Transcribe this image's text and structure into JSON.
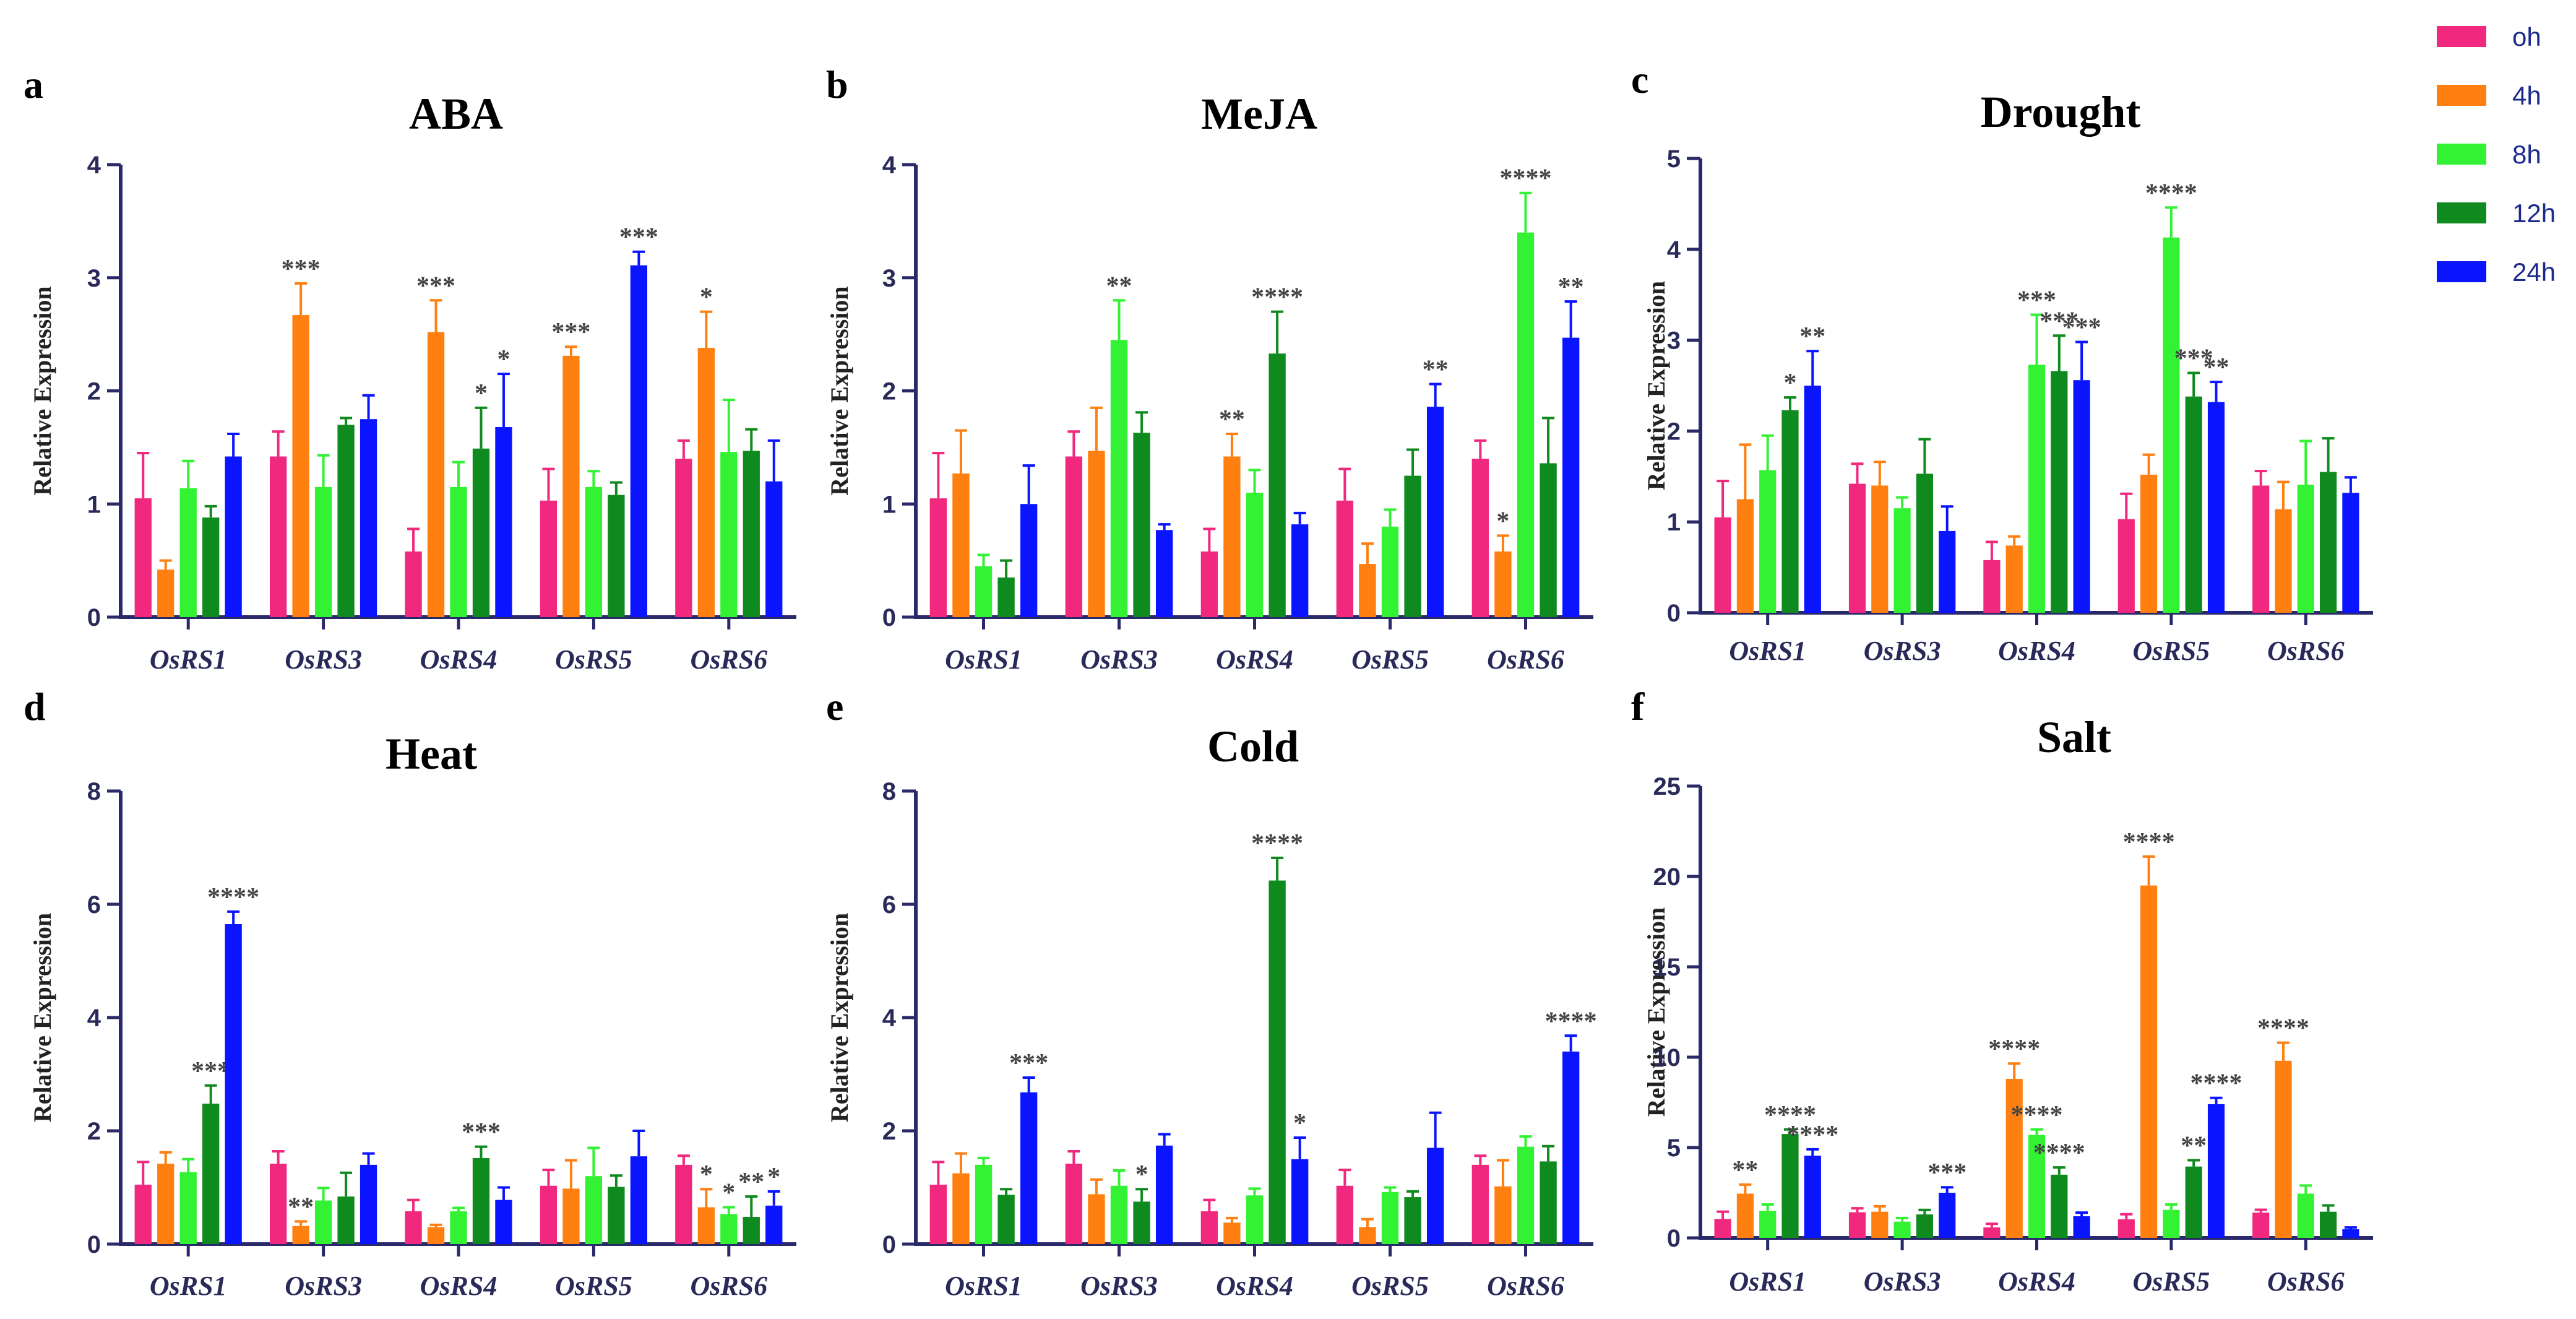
{
  "legend": [
    {
      "label": "oh",
      "color": "#f0287e"
    },
    {
      "label": "4h",
      "color": "#ff7f10"
    },
    {
      "label": "8h",
      "color": "#33f233"
    },
    {
      "label": "12h",
      "color": "#0f8a1e"
    },
    {
      "label": "24h",
      "color": "#0a14ff"
    }
  ],
  "chart_data": [
    {
      "letter": "a",
      "title": "ABA",
      "type": "bar",
      "ylabel": "Relative Expression",
      "ylim": [
        0,
        4
      ],
      "yticks": [
        0,
        1,
        2,
        3,
        4
      ],
      "categories": [
        "OsRS1",
        "OsRS3",
        "OsRS4",
        "OsRS5",
        "OsRS6"
      ],
      "series": [
        {
          "name": "oh",
          "values": [
            1.05,
            1.42,
            0.58,
            1.03,
            1.4
          ],
          "errors": [
            0.4,
            0.22,
            0.2,
            0.28,
            0.16
          ],
          "sig": [
            "",
            "",
            "",
            "",
            ""
          ]
        },
        {
          "name": "4h",
          "values": [
            0.42,
            2.67,
            2.52,
            2.31,
            2.38
          ],
          "errors": [
            0.08,
            0.28,
            0.28,
            0.08,
            0.32
          ],
          "sig": [
            "",
            "***",
            "***",
            "***",
            "*"
          ]
        },
        {
          "name": "8h",
          "values": [
            1.14,
            1.15,
            1.15,
            1.15,
            1.46
          ],
          "errors": [
            0.24,
            0.28,
            0.22,
            0.14,
            0.46
          ],
          "sig": [
            "",
            "",
            "",
            "",
            ""
          ]
        },
        {
          "name": "12h",
          "values": [
            0.88,
            1.7,
            1.49,
            1.08,
            1.47
          ],
          "errors": [
            0.1,
            0.06,
            0.36,
            0.11,
            0.19
          ],
          "sig": [
            "",
            "",
            "*",
            "",
            ""
          ]
        },
        {
          "name": "24h",
          "values": [
            1.42,
            1.75,
            1.68,
            3.11,
            1.2
          ],
          "errors": [
            0.2,
            0.21,
            0.47,
            0.12,
            0.36
          ],
          "sig": [
            "",
            "",
            "*",
            "***",
            ""
          ]
        }
      ]
    },
    {
      "letter": "b",
      "title": "MeJA",
      "type": "bar",
      "ylabel": "Relative Expression",
      "ylim": [
        0,
        4
      ],
      "yticks": [
        0,
        1,
        2,
        3,
        4
      ],
      "categories": [
        "OsRS1",
        "OsRS3",
        "OsRS4",
        "OsRS5",
        "OsRS6"
      ],
      "series": [
        {
          "name": "oh",
          "values": [
            1.05,
            1.42,
            0.58,
            1.03,
            1.4
          ],
          "errors": [
            0.4,
            0.22,
            0.2,
            0.28,
            0.16
          ],
          "sig": [
            "",
            "",
            "",
            "",
            ""
          ]
        },
        {
          "name": "4h",
          "values": [
            1.27,
            1.47,
            1.42,
            0.47,
            0.58
          ],
          "errors": [
            0.38,
            0.38,
            0.2,
            0.18,
            0.14
          ],
          "sig": [
            "",
            "",
            "**",
            "",
            "*"
          ]
        },
        {
          "name": "8h",
          "values": [
            0.45,
            2.45,
            1.1,
            0.8,
            3.4
          ],
          "errors": [
            0.1,
            0.35,
            0.2,
            0.15,
            0.35
          ],
          "sig": [
            "",
            "**",
            "",
            "",
            "****"
          ]
        },
        {
          "name": "12h",
          "values": [
            0.35,
            1.63,
            2.33,
            1.25,
            1.36
          ],
          "errors": [
            0.15,
            0.18,
            0.37,
            0.23,
            0.4
          ],
          "sig": [
            "",
            "",
            "****",
            "",
            ""
          ]
        },
        {
          "name": "24h",
          "values": [
            1.0,
            0.77,
            0.82,
            1.86,
            2.47
          ],
          "errors": [
            0.34,
            0.05,
            0.1,
            0.2,
            0.32
          ],
          "sig": [
            "",
            "",
            "",
            "**",
            "**"
          ]
        }
      ]
    },
    {
      "letter": "c",
      "title": "Drought",
      "type": "bar",
      "ylabel": "Relative Expression",
      "ylim": [
        0,
        5
      ],
      "yticks": [
        0,
        1,
        2,
        3,
        4,
        5
      ],
      "categories": [
        "OsRS1",
        "OsRS3",
        "OsRS4",
        "OsRS5",
        "OsRS6"
      ],
      "series": [
        {
          "name": "oh",
          "values": [
            1.05,
            1.42,
            0.58,
            1.03,
            1.4
          ],
          "errors": [
            0.4,
            0.22,
            0.2,
            0.28,
            0.16
          ],
          "sig": [
            "",
            "",
            "",
            "",
            ""
          ]
        },
        {
          "name": "4h",
          "values": [
            1.25,
            1.4,
            0.74,
            1.52,
            1.14
          ],
          "errors": [
            0.6,
            0.26,
            0.1,
            0.22,
            0.3
          ],
          "sig": [
            "",
            "",
            "",
            "",
            ""
          ]
        },
        {
          "name": "8h",
          "values": [
            1.57,
            1.15,
            2.73,
            4.13,
            1.41
          ],
          "errors": [
            0.38,
            0.12,
            0.55,
            0.33,
            0.48
          ],
          "sig": [
            "",
            "",
            "***",
            "****",
            ""
          ]
        },
        {
          "name": "12h",
          "values": [
            2.23,
            1.53,
            2.66,
            2.38,
            1.55
          ],
          "errors": [
            0.14,
            0.38,
            0.39,
            0.26,
            0.37
          ],
          "sig": [
            "*",
            "",
            "***",
            "***",
            ""
          ]
        },
        {
          "name": "24h",
          "values": [
            2.5,
            0.9,
            2.56,
            2.32,
            1.32
          ],
          "errors": [
            0.38,
            0.27,
            0.42,
            0.22,
            0.17
          ],
          "sig": [
            "**",
            "",
            "***",
            "**",
            ""
          ]
        }
      ]
    },
    {
      "letter": "d",
      "title": "Heat",
      "type": "bar",
      "ylabel": "Relative Expression",
      "ylim": [
        0,
        8
      ],
      "yticks": [
        0,
        2,
        4,
        6,
        8
      ],
      "categories": [
        "OsRS1",
        "OsRS3",
        "OsRS4",
        "OsRS5",
        "OsRS6"
      ],
      "series": [
        {
          "name": "oh",
          "values": [
            1.05,
            1.42,
            0.58,
            1.03,
            1.4
          ],
          "errors": [
            0.4,
            0.22,
            0.2,
            0.28,
            0.16
          ],
          "sig": [
            "",
            "",
            "",
            "",
            ""
          ]
        },
        {
          "name": "4h",
          "values": [
            1.42,
            0.32,
            0.3,
            0.98,
            0.65
          ],
          "errors": [
            0.2,
            0.08,
            0.04,
            0.5,
            0.32
          ],
          "sig": [
            "",
            "**",
            "",
            "",
            "*"
          ]
        },
        {
          "name": "8h",
          "values": [
            1.27,
            0.77,
            0.58,
            1.2,
            0.53
          ],
          "errors": [
            0.23,
            0.22,
            0.06,
            0.5,
            0.12
          ],
          "sig": [
            "",
            "",
            "",
            "",
            "*"
          ]
        },
        {
          "name": "12h",
          "values": [
            2.48,
            0.84,
            1.52,
            1.01,
            0.48
          ],
          "errors": [
            0.32,
            0.42,
            0.2,
            0.2,
            0.36
          ],
          "sig": [
            "***",
            "",
            "***",
            "",
            "**"
          ]
        },
        {
          "name": "24h",
          "values": [
            5.65,
            1.4,
            0.78,
            1.55,
            0.68
          ],
          "errors": [
            0.22,
            0.2,
            0.22,
            0.45,
            0.25
          ],
          "sig": [
            "****",
            "",
            "",
            "",
            "*"
          ]
        }
      ]
    },
    {
      "letter": "e",
      "title": "Cold",
      "type": "bar",
      "ylabel": "Relative Expression",
      "ylim": [
        0,
        8
      ],
      "yticks": [
        0,
        2,
        4,
        6,
        8
      ],
      "categories": [
        "OsRS1",
        "OsRS3",
        "OsRS4",
        "OsRS5",
        "OsRS6"
      ],
      "series": [
        {
          "name": "oh",
          "values": [
            1.05,
            1.42,
            0.58,
            1.03,
            1.4
          ],
          "errors": [
            0.4,
            0.22,
            0.2,
            0.28,
            0.16
          ],
          "sig": [
            "",
            "",
            "",
            "",
            ""
          ]
        },
        {
          "name": "4h",
          "values": [
            1.25,
            0.88,
            0.38,
            0.3,
            1.02
          ],
          "errors": [
            0.35,
            0.26,
            0.08,
            0.14,
            0.46
          ],
          "sig": [
            "",
            "",
            "",
            "",
            ""
          ]
        },
        {
          "name": "8h",
          "values": [
            1.4,
            1.03,
            0.86,
            0.92,
            1.72
          ],
          "errors": [
            0.12,
            0.27,
            0.12,
            0.08,
            0.18
          ],
          "sig": [
            "",
            "",
            "",
            "",
            ""
          ]
        },
        {
          "name": "12h",
          "values": [
            0.87,
            0.75,
            6.42,
            0.83,
            1.46
          ],
          "errors": [
            0.1,
            0.22,
            0.4,
            0.1,
            0.27
          ],
          "sig": [
            "",
            "*",
            "****",
            "",
            ""
          ]
        },
        {
          "name": "24h",
          "values": [
            2.68,
            1.74,
            1.5,
            1.7,
            3.4
          ],
          "errors": [
            0.26,
            0.2,
            0.38,
            0.62,
            0.28
          ],
          "sig": [
            "***",
            "",
            "*",
            "",
            "****"
          ]
        }
      ]
    },
    {
      "letter": "f",
      "title": "Salt",
      "type": "bar",
      "ylabel": "Relative Expression",
      "ylim": [
        0,
        25
      ],
      "yticks": [
        0,
        5,
        10,
        15,
        20,
        25
      ],
      "categories": [
        "OsRS1",
        "OsRS3",
        "OsRS4",
        "OsRS5",
        "OsRS6"
      ],
      "series": [
        {
          "name": "oh",
          "values": [
            1.05,
            1.42,
            0.58,
            1.03,
            1.4
          ],
          "errors": [
            0.4,
            0.22,
            0.2,
            0.28,
            0.16
          ],
          "sig": [
            "",
            "",
            "",
            "",
            ""
          ]
        },
        {
          "name": "4h",
          "values": [
            2.45,
            1.45,
            8.8,
            19.5,
            9.8
          ],
          "errors": [
            0.5,
            0.3,
            0.85,
            1.6,
            1.0
          ],
          "sig": [
            "**",
            "",
            "****",
            "****",
            "****"
          ]
        },
        {
          "name": "8h",
          "values": [
            1.5,
            0.9,
            5.7,
            1.55,
            2.45
          ],
          "errors": [
            0.35,
            0.2,
            0.3,
            0.3,
            0.45
          ],
          "sig": [
            "",
            "",
            "****",
            "",
            ""
          ]
        },
        {
          "name": "12h",
          "values": [
            5.75,
            1.3,
            3.5,
            3.95,
            1.45
          ],
          "errors": [
            0.25,
            0.25,
            0.4,
            0.35,
            0.35
          ],
          "sig": [
            "****",
            "",
            "****",
            "**",
            ""
          ]
        },
        {
          "name": "24h",
          "values": [
            4.55,
            2.5,
            1.2,
            7.4,
            0.48
          ],
          "errors": [
            0.35,
            0.3,
            0.2,
            0.35,
            0.1
          ],
          "sig": [
            "****",
            "***",
            "",
            "****",
            ""
          ]
        }
      ]
    }
  ]
}
